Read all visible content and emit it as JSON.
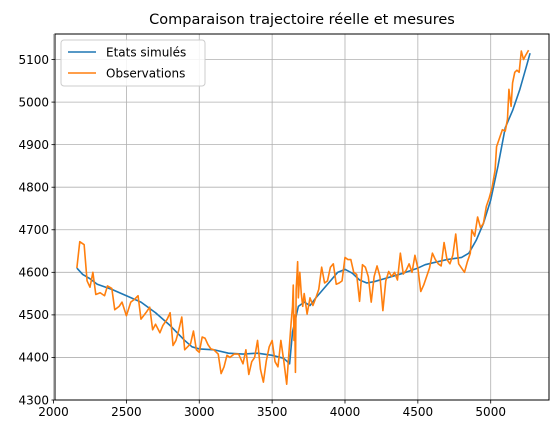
{
  "chart_data": {
    "type": "line",
    "title": "Comparaison trajectoire réelle et mesures",
    "xlabel": "",
    "ylabel": "",
    "xlim": [
      2010,
      5400
    ],
    "ylim": [
      4300,
      5160
    ],
    "xticks": [
      2000,
      2500,
      3000,
      3500,
      4000,
      4500,
      5000
    ],
    "yticks": [
      4300,
      4400,
      4500,
      4600,
      4700,
      4800,
      4900,
      5000,
      5100
    ],
    "grid": true,
    "legend_position": "upper-left",
    "series": [
      {
        "name": "Etats simulés",
        "color": "#1f77b4",
        "points": [
          [
            2160,
            4610
          ],
          [
            2200,
            4595
          ],
          [
            2250,
            4585
          ],
          [
            2300,
            4572
          ],
          [
            2400,
            4560
          ],
          [
            2500,
            4545
          ],
          [
            2600,
            4530
          ],
          [
            2700,
            4505
          ],
          [
            2800,
            4475
          ],
          [
            2900,
            4440
          ],
          [
            2950,
            4425
          ],
          [
            3000,
            4420
          ],
          [
            3100,
            4418
          ],
          [
            3200,
            4410
          ],
          [
            3300,
            4408
          ],
          [
            3400,
            4410
          ],
          [
            3500,
            4405
          ],
          [
            3580,
            4398
          ],
          [
            3620,
            4385
          ],
          [
            3640,
            4460
          ],
          [
            3680,
            4520
          ],
          [
            3720,
            4530
          ],
          [
            3760,
            4522
          ],
          [
            3800,
            4540
          ],
          [
            3850,
            4560
          ],
          [
            3900,
            4580
          ],
          [
            3950,
            4600
          ],
          [
            4000,
            4607
          ],
          [
            4050,
            4598
          ],
          [
            4100,
            4582
          ],
          [
            4150,
            4575
          ],
          [
            4200,
            4578
          ],
          [
            4300,
            4588
          ],
          [
            4400,
            4598
          ],
          [
            4500,
            4610
          ],
          [
            4550,
            4618
          ],
          [
            4600,
            4622
          ],
          [
            4700,
            4630
          ],
          [
            4800,
            4635
          ],
          [
            4850,
            4645
          ],
          [
            4900,
            4675
          ],
          [
            4950,
            4715
          ],
          [
            5000,
            4770
          ],
          [
            5050,
            4850
          ],
          [
            5100,
            4940
          ],
          [
            5150,
            4980
          ],
          [
            5200,
            5030
          ],
          [
            5250,
            5090
          ],
          [
            5270,
            5115
          ]
        ]
      },
      {
        "name": "Observations",
        "color": "#ff7f0e",
        "points": [
          [
            2160,
            4610
          ],
          [
            2180,
            4672
          ],
          [
            2210,
            4665
          ],
          [
            2230,
            4580
          ],
          [
            2250,
            4565
          ],
          [
            2270,
            4600
          ],
          [
            2290,
            4548
          ],
          [
            2320,
            4552
          ],
          [
            2350,
            4545
          ],
          [
            2370,
            4568
          ],
          [
            2400,
            4562
          ],
          [
            2420,
            4512
          ],
          [
            2450,
            4520
          ],
          [
            2470,
            4530
          ],
          [
            2500,
            4498
          ],
          [
            2530,
            4530
          ],
          [
            2560,
            4538
          ],
          [
            2580,
            4545
          ],
          [
            2600,
            4490
          ],
          [
            2640,
            4508
          ],
          [
            2660,
            4518
          ],
          [
            2680,
            4465
          ],
          [
            2700,
            4478
          ],
          [
            2730,
            4458
          ],
          [
            2750,
            4475
          ],
          [
            2780,
            4490
          ],
          [
            2800,
            4505
          ],
          [
            2820,
            4428
          ],
          [
            2840,
            4440
          ],
          [
            2860,
            4465
          ],
          [
            2880,
            4495
          ],
          [
            2900,
            4418
          ],
          [
            2920,
            4425
          ],
          [
            2940,
            4432
          ],
          [
            2960,
            4462
          ],
          [
            2980,
            4418
          ],
          [
            3000,
            4412
          ],
          [
            3020,
            4448
          ],
          [
            3040,
            4445
          ],
          [
            3060,
            4430
          ],
          [
            3080,
            4420
          ],
          [
            3100,
            4418
          ],
          [
            3130,
            4408
          ],
          [
            3150,
            4362
          ],
          [
            3170,
            4378
          ],
          [
            3190,
            4405
          ],
          [
            3210,
            4400
          ],
          [
            3240,
            4408
          ],
          [
            3270,
            4408
          ],
          [
            3300,
            4385
          ],
          [
            3320,
            4418
          ],
          [
            3340,
            4360
          ],
          [
            3360,
            4390
          ],
          [
            3380,
            4400
          ],
          [
            3400,
            4440
          ],
          [
            3420,
            4372
          ],
          [
            3440,
            4342
          ],
          [
            3460,
            4392
          ],
          [
            3480,
            4425
          ],
          [
            3500,
            4440
          ],
          [
            3520,
            4390
          ],
          [
            3540,
            4378
          ],
          [
            3560,
            4440
          ],
          [
            3580,
            4392
          ],
          [
            3600,
            4337
          ],
          [
            3615,
            4410
          ],
          [
            3630,
            4480
          ],
          [
            3640,
            4520
          ],
          [
            3645,
            4570
          ],
          [
            3650,
            4440
          ],
          [
            3655,
            4500
          ],
          [
            3660,
            4365
          ],
          [
            3665,
            4560
          ],
          [
            3670,
            4590
          ],
          [
            3675,
            4625
          ],
          [
            3680,
            4540
          ],
          [
            3690,
            4600
          ],
          [
            3700,
            4550
          ],
          [
            3710,
            4520
          ],
          [
            3720,
            4550
          ],
          [
            3740,
            4502
          ],
          [
            3760,
            4540
          ],
          [
            3780,
            4522
          ],
          [
            3800,
            4540
          ],
          [
            3820,
            4560
          ],
          [
            3840,
            4612
          ],
          [
            3860,
            4575
          ],
          [
            3880,
            4580
          ],
          [
            3900,
            4612
          ],
          [
            3920,
            4620
          ],
          [
            3940,
            4572
          ],
          [
            3960,
            4575
          ],
          [
            3980,
            4580
          ],
          [
            4000,
            4635
          ],
          [
            4020,
            4630
          ],
          [
            4040,
            4630
          ],
          [
            4060,
            4600
          ],
          [
            4080,
            4595
          ],
          [
            4100,
            4532
          ],
          [
            4120,
            4618
          ],
          [
            4140,
            4612
          ],
          [
            4160,
            4590
          ],
          [
            4180,
            4530
          ],
          [
            4200,
            4590
          ],
          [
            4220,
            4615
          ],
          [
            4240,
            4590
          ],
          [
            4260,
            4510
          ],
          [
            4280,
            4580
          ],
          [
            4300,
            4602
          ],
          [
            4320,
            4590
          ],
          [
            4340,
            4600
          ],
          [
            4360,
            4582
          ],
          [
            4380,
            4645
          ],
          [
            4400,
            4596
          ],
          [
            4420,
            4605
          ],
          [
            4440,
            4620
          ],
          [
            4460,
            4600
          ],
          [
            4480,
            4640
          ],
          [
            4500,
            4610
          ],
          [
            4520,
            4555
          ],
          [
            4540,
            4570
          ],
          [
            4560,
            4590
          ],
          [
            4580,
            4610
          ],
          [
            4600,
            4645
          ],
          [
            4620,
            4630
          ],
          [
            4640,
            4620
          ],
          [
            4660,
            4615
          ],
          [
            4680,
            4670
          ],
          [
            4700,
            4630
          ],
          [
            4720,
            4620
          ],
          [
            4740,
            4640
          ],
          [
            4760,
            4690
          ],
          [
            4780,
            4620
          ],
          [
            4800,
            4610
          ],
          [
            4820,
            4600
          ],
          [
            4840,
            4625
          ],
          [
            4860,
            4645
          ],
          [
            4870,
            4700
          ],
          [
            4890,
            4685
          ],
          [
            4910,
            4730
          ],
          [
            4930,
            4705
          ],
          [
            4950,
            4715
          ],
          [
            4970,
            4755
          ],
          [
            4990,
            4775
          ],
          [
            5010,
            4800
          ],
          [
            5030,
            4840
          ],
          [
            5040,
            4895
          ],
          [
            5060,
            4915
          ],
          [
            5080,
            4935
          ],
          [
            5100,
            4932
          ],
          [
            5115,
            4960
          ],
          [
            5125,
            5030
          ],
          [
            5140,
            4990
          ],
          [
            5150,
            5045
          ],
          [
            5165,
            5070
          ],
          [
            5180,
            5075
          ],
          [
            5195,
            5070
          ],
          [
            5210,
            5120
          ],
          [
            5225,
            5100
          ],
          [
            5240,
            5110
          ],
          [
            5260,
            5122
          ]
        ]
      }
    ]
  }
}
